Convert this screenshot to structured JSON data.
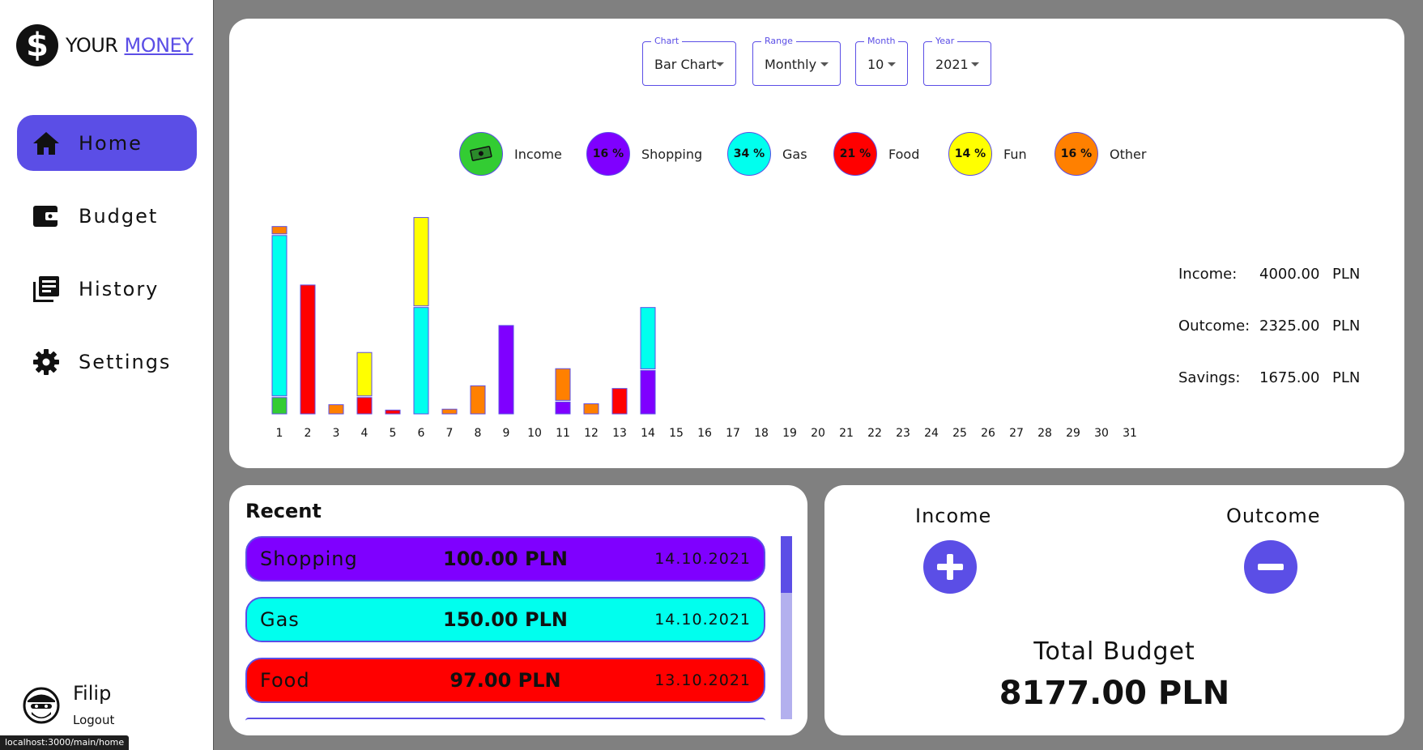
{
  "app": {
    "logo_glyph": "$",
    "title_part1": "YOUR",
    "title_part2": "MONEY",
    "accent": "#5b4ee6"
  },
  "sidebar": {
    "items": [
      {
        "label": "Home",
        "icon": "home-icon",
        "active": true
      },
      {
        "label": "Budget",
        "icon": "wallet-icon",
        "active": false
      },
      {
        "label": "History",
        "icon": "history-icon",
        "active": false
      },
      {
        "label": "Settings",
        "icon": "gear-icon",
        "active": false
      }
    ]
  },
  "user": {
    "name": "Filip",
    "logout_label": "Logout"
  },
  "status_bar": {
    "url": "localhost:3000/main/home"
  },
  "filters": {
    "chart": {
      "label": "Chart",
      "value": "Bar Chart"
    },
    "range": {
      "label": "Range",
      "value": "Monthly"
    },
    "month": {
      "label": "Month",
      "value": "10"
    },
    "year": {
      "label": "Year",
      "value": "2021"
    }
  },
  "legend": [
    {
      "label": "Income",
      "percent": "",
      "color": "#33cc33",
      "icon": "cash-icon"
    },
    {
      "label": "Shopping",
      "percent": "16 %",
      "color": "#7f00ff"
    },
    {
      "label": "Gas",
      "percent": "34 %",
      "color": "#00ffee"
    },
    {
      "label": "Food",
      "percent": "21 %",
      "color": "#ff0000"
    },
    {
      "label": "Fun",
      "percent": "14 %",
      "color": "#ffff00"
    },
    {
      "label": "Other",
      "percent": "16 %",
      "color": "#ff8000"
    }
  ],
  "chart_data": {
    "type": "bar",
    "stacked": true,
    "categories": [
      "1",
      "2",
      "3",
      "4",
      "5",
      "6",
      "7",
      "8",
      "9",
      "10",
      "11",
      "12",
      "13",
      "14",
      "15",
      "16",
      "17",
      "18",
      "19",
      "20",
      "21",
      "22",
      "23",
      "24",
      "25",
      "26",
      "27",
      "28",
      "29",
      "30",
      "31"
    ],
    "series": [
      {
        "name": "Income",
        "color": "#33cc33",
        "values": [
          20,
          0,
          0,
          0,
          0,
          0,
          0,
          0,
          0,
          0,
          0,
          0,
          0,
          0,
          0,
          0,
          0,
          0,
          0,
          0,
          0,
          0,
          0,
          0,
          0,
          0,
          0,
          0,
          0,
          0,
          0
        ]
      },
      {
        "name": "Shopping",
        "color": "#7f00ff",
        "values": [
          0,
          0,
          0,
          0,
          0,
          0,
          0,
          0,
          100,
          0,
          15,
          0,
          0,
          50,
          0,
          0,
          0,
          0,
          0,
          0,
          0,
          0,
          0,
          0,
          0,
          0,
          0,
          0,
          0,
          0,
          0
        ]
      },
      {
        "name": "Gas",
        "color": "#00ffee",
        "values": [
          180,
          0,
          0,
          0,
          0,
          120,
          0,
          0,
          0,
          0,
          0,
          0,
          0,
          70,
          0,
          0,
          0,
          0,
          0,
          0,
          0,
          0,
          0,
          0,
          0,
          0,
          0,
          0,
          0,
          0,
          0
        ]
      },
      {
        "name": "Food",
        "color": "#ff0000",
        "values": [
          0,
          145,
          0,
          20,
          6,
          0,
          0,
          0,
          0,
          0,
          0,
          0,
          30,
          0,
          0,
          0,
          0,
          0,
          0,
          0,
          0,
          0,
          0,
          0,
          0,
          0,
          0,
          0,
          0,
          0,
          0
        ]
      },
      {
        "name": "Fun",
        "color": "#ffff00",
        "values": [
          0,
          0,
          0,
          50,
          0,
          100,
          0,
          0,
          0,
          0,
          0,
          0,
          0,
          0,
          0,
          0,
          0,
          0,
          0,
          0,
          0,
          0,
          0,
          0,
          0,
          0,
          0,
          0,
          0,
          0,
          0
        ]
      },
      {
        "name": "Other",
        "color": "#ff8000",
        "values": [
          10,
          0,
          12,
          0,
          0,
          0,
          7,
          33,
          0,
          0,
          37,
          13,
          0,
          0,
          0,
          0,
          0,
          0,
          0,
          0,
          0,
          0,
          0,
          0,
          0,
          0,
          0,
          0,
          0,
          0,
          0
        ]
      }
    ],
    "ylim": [
      0,
      225
    ],
    "grid": false
  },
  "summary": {
    "income": {
      "label": "Income:",
      "value": "4000.00",
      "currency": "PLN"
    },
    "outcome": {
      "label": "Outcome:",
      "value": "2325.00",
      "currency": "PLN"
    },
    "savings": {
      "label": "Savings:",
      "value": "1675.00",
      "currency": "PLN"
    }
  },
  "recent": {
    "title": "Recent",
    "items": [
      {
        "category": "Shopping",
        "amount": "100.00 PLN",
        "date": "14.10.2021",
        "color": "#7f00ff"
      },
      {
        "category": "Gas",
        "amount": "150.00 PLN",
        "date": "14.10.2021",
        "color": "#00ffee"
      },
      {
        "category": "Food",
        "amount": "97.00 PLN",
        "date": "13.10.2021",
        "color": "#ff0000"
      }
    ]
  },
  "budget": {
    "income_label": "Income",
    "outcome_label": "Outcome",
    "total_label": "Total Budget",
    "total_value": "8177.00 PLN"
  }
}
